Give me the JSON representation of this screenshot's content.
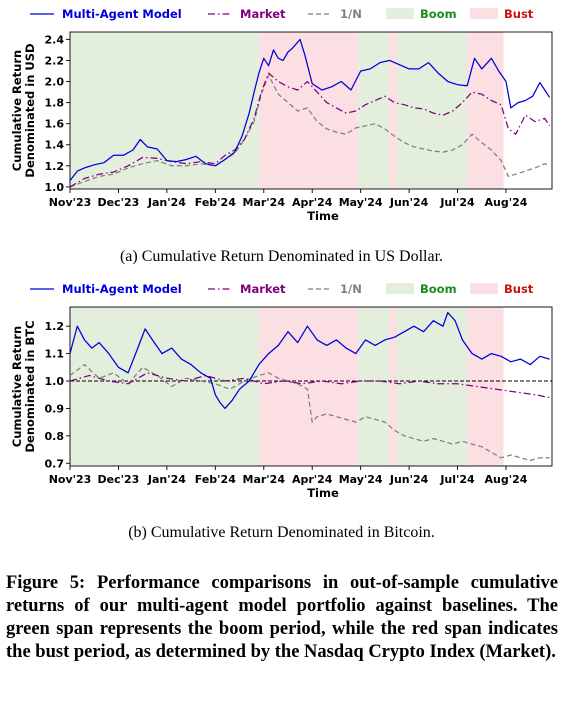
{
  "chart_data": [
    {
      "type": "line",
      "id": "usd",
      "xticks": [
        "Nov'23",
        "Dec'23",
        "Jan'24",
        "Feb'24",
        "Mar'24",
        "Apr'24",
        "May'24",
        "Jun'24",
        "Jul'24",
        "Aug'24"
      ],
      "xlabel": "Time",
      "ylabel": [
        "Cumulative Return",
        "Denominated in USD"
      ],
      "yticks": [
        "1.0",
        "1.2",
        "1.4",
        "1.6",
        "1.8",
        "2.0",
        "2.2",
        "2.4"
      ],
      "ylim": [
        0.98,
        2.47
      ],
      "xlim": [
        0,
        9.95
      ],
      "baseline": null,
      "spans": [
        {
          "kind": "boom",
          "start": 0.0,
          "end": 3.9
        },
        {
          "kind": "bust",
          "start": 3.9,
          "end": 5.95
        },
        {
          "kind": "boom",
          "start": 5.95,
          "end": 6.6
        },
        {
          "kind": "bust",
          "start": 6.6,
          "end": 6.75
        },
        {
          "kind": "boom",
          "start": 6.75,
          "end": 8.2
        },
        {
          "kind": "bust",
          "start": 8.2,
          "end": 8.95
        }
      ],
      "series": [
        {
          "name": "Multi-Agent Model",
          "color": "#0000dd",
          "dash": "",
          "x": [
            0,
            0.15,
            0.3,
            0.5,
            0.7,
            0.9,
            1.1,
            1.3,
            1.45,
            1.6,
            1.8,
            2.0,
            2.2,
            2.4,
            2.6,
            2.8,
            3.0,
            3.2,
            3.4,
            3.55,
            3.7,
            3.8,
            3.9,
            4.0,
            4.1,
            4.2,
            4.3,
            4.4,
            4.5,
            4.6,
            4.75,
            4.85,
            5.0,
            5.2,
            5.4,
            5.6,
            5.8,
            6.0,
            6.2,
            6.4,
            6.6,
            6.8,
            7.0,
            7.2,
            7.4,
            7.6,
            7.8,
            8.0,
            8.2,
            8.35,
            8.5,
            8.7,
            8.85,
            9.0,
            9.1,
            9.25,
            9.4,
            9.55,
            9.7,
            9.9
          ],
          "y": [
            1.06,
            1.15,
            1.18,
            1.21,
            1.23,
            1.3,
            1.3,
            1.35,
            1.45,
            1.38,
            1.36,
            1.25,
            1.24,
            1.26,
            1.29,
            1.22,
            1.2,
            1.26,
            1.33,
            1.48,
            1.7,
            1.9,
            2.08,
            2.22,
            2.15,
            2.3,
            2.22,
            2.2,
            2.28,
            2.32,
            2.4,
            2.25,
            1.98,
            1.92,
            1.95,
            2.0,
            1.92,
            2.1,
            2.12,
            2.18,
            2.2,
            2.16,
            2.12,
            2.12,
            2.18,
            2.08,
            2.0,
            1.97,
            1.96,
            2.22,
            2.12,
            2.22,
            2.1,
            2.0,
            1.75,
            1.8,
            1.82,
            1.86,
            1.99,
            1.85
          ]
        },
        {
          "name": "Market",
          "color": "#7f007f",
          "dash": "7,3,1.5,3",
          "x": [
            0,
            0.3,
            0.6,
            0.9,
            1.2,
            1.5,
            1.8,
            2.1,
            2.4,
            2.7,
            3.0,
            3.2,
            3.4,
            3.6,
            3.8,
            3.95,
            4.1,
            4.3,
            4.5,
            4.7,
            4.9,
            5.1,
            5.3,
            5.5,
            5.7,
            5.9,
            6.1,
            6.3,
            6.5,
            6.7,
            6.9,
            7.1,
            7.3,
            7.5,
            7.7,
            7.9,
            8.1,
            8.3,
            8.5,
            8.7,
            8.9,
            9.05,
            9.2,
            9.4,
            9.6,
            9.8,
            9.9
          ],
          "y": [
            1.0,
            1.08,
            1.12,
            1.14,
            1.2,
            1.28,
            1.27,
            1.24,
            1.22,
            1.24,
            1.22,
            1.3,
            1.35,
            1.45,
            1.65,
            1.9,
            2.08,
            2.0,
            1.95,
            1.92,
            2.0,
            1.9,
            1.8,
            1.75,
            1.7,
            1.72,
            1.78,
            1.82,
            1.86,
            1.8,
            1.78,
            1.75,
            1.74,
            1.7,
            1.68,
            1.72,
            1.8,
            1.9,
            1.88,
            1.82,
            1.78,
            1.55,
            1.5,
            1.68,
            1.62,
            1.65,
            1.58
          ]
        },
        {
          "name": "1/N",
          "color": "#808080",
          "dash": "5,3",
          "x": [
            0,
            0.3,
            0.6,
            0.9,
            1.2,
            1.5,
            1.8,
            2.1,
            2.4,
            2.7,
            3.0,
            3.2,
            3.4,
            3.6,
            3.8,
            3.95,
            4.1,
            4.3,
            4.5,
            4.7,
            4.9,
            5.1,
            5.3,
            5.5,
            5.7,
            5.9,
            6.1,
            6.3,
            6.5,
            6.7,
            6.9,
            7.1,
            7.3,
            7.5,
            7.7,
            7.9,
            8.1,
            8.3,
            8.5,
            8.7,
            8.9,
            9.05,
            9.2,
            9.4,
            9.6,
            9.8,
            9.9
          ],
          "y": [
            1.0,
            1.05,
            1.1,
            1.12,
            1.18,
            1.22,
            1.25,
            1.2,
            1.2,
            1.22,
            1.2,
            1.26,
            1.32,
            1.45,
            1.62,
            1.88,
            2.06,
            1.88,
            1.8,
            1.72,
            1.75,
            1.62,
            1.55,
            1.52,
            1.5,
            1.56,
            1.58,
            1.6,
            1.55,
            1.48,
            1.42,
            1.38,
            1.36,
            1.34,
            1.33,
            1.35,
            1.4,
            1.5,
            1.42,
            1.35,
            1.25,
            1.1,
            1.12,
            1.15,
            1.18,
            1.22,
            1.2
          ]
        }
      ]
    },
    {
      "type": "line",
      "id": "btc",
      "xticks": [
        "Nov'23",
        "Dec'23",
        "Jan'24",
        "Feb'24",
        "Mar'24",
        "Apr'24",
        "May'24",
        "Jun'24",
        "Jul'24",
        "Aug'24"
      ],
      "xlabel": "Time",
      "ylabel": [
        "Cumulative Return",
        "Denominated in BTC"
      ],
      "yticks": [
        "0.7",
        "0.8",
        "0.9",
        "1.0",
        "1.1",
        "1.2"
      ],
      "ylim": [
        0.69,
        1.27
      ],
      "xlim": [
        0,
        9.95
      ],
      "baseline": 1.0,
      "spans": [
        {
          "kind": "boom",
          "start": 0.0,
          "end": 3.9
        },
        {
          "kind": "bust",
          "start": 3.9,
          "end": 5.95
        },
        {
          "kind": "boom",
          "start": 5.95,
          "end": 6.6
        },
        {
          "kind": "bust",
          "start": 6.6,
          "end": 6.75
        },
        {
          "kind": "boom",
          "start": 6.75,
          "end": 8.2
        },
        {
          "kind": "bust",
          "start": 8.2,
          "end": 8.95
        }
      ],
      "series": [
        {
          "name": "Multi-Agent Model",
          "color": "#0000dd",
          "dash": "",
          "x": [
            0,
            0.15,
            0.3,
            0.45,
            0.6,
            0.8,
            1.0,
            1.2,
            1.4,
            1.55,
            1.7,
            1.9,
            2.1,
            2.3,
            2.5,
            2.7,
            2.9,
            3.0,
            3.1,
            3.2,
            3.35,
            3.5,
            3.7,
            3.9,
            4.1,
            4.3,
            4.5,
            4.7,
            4.9,
            5.1,
            5.3,
            5.5,
            5.7,
            5.9,
            6.1,
            6.3,
            6.5,
            6.7,
            6.9,
            7.1,
            7.3,
            7.5,
            7.7,
            7.8,
            7.95,
            8.1,
            8.3,
            8.5,
            8.7,
            8.9,
            9.1,
            9.3,
            9.5,
            9.7,
            9.9
          ],
          "y": [
            1.1,
            1.2,
            1.15,
            1.12,
            1.14,
            1.1,
            1.05,
            1.03,
            1.12,
            1.19,
            1.15,
            1.1,
            1.12,
            1.08,
            1.06,
            1.03,
            1.01,
            0.95,
            0.92,
            0.9,
            0.93,
            0.97,
            1.0,
            1.06,
            1.1,
            1.13,
            1.18,
            1.14,
            1.2,
            1.15,
            1.13,
            1.15,
            1.12,
            1.1,
            1.15,
            1.13,
            1.15,
            1.16,
            1.18,
            1.2,
            1.18,
            1.22,
            1.2,
            1.25,
            1.22,
            1.15,
            1.1,
            1.08,
            1.1,
            1.09,
            1.07,
            1.08,
            1.06,
            1.09,
            1.08
          ]
        },
        {
          "name": "Market",
          "color": "#7f007f",
          "dash": "7,3,1.5,3",
          "x": [
            0,
            0.4,
            0.8,
            1.2,
            1.6,
            2.0,
            2.4,
            2.8,
            3.2,
            3.6,
            4.0,
            4.4,
            4.8,
            5.2,
            5.6,
            6.0,
            6.4,
            6.8,
            7.2,
            7.6,
            8.0,
            8.4,
            8.8,
            9.2,
            9.6,
            9.9
          ],
          "y": [
            1.0,
            1.02,
            1.0,
            0.99,
            1.03,
            1.01,
            1.0,
            1.02,
            1.0,
            1.01,
            0.99,
            1.0,
            0.99,
            1.0,
            0.99,
            1.0,
            1.0,
            0.99,
            1.0,
            0.99,
            0.99,
            0.98,
            0.97,
            0.96,
            0.95,
            0.94
          ]
        },
        {
          "name": "1/N",
          "color": "#808080",
          "dash": "5,3",
          "x": [
            0,
            0.3,
            0.6,
            0.9,
            1.2,
            1.5,
            1.8,
            2.1,
            2.4,
            2.7,
            3.0,
            3.3,
            3.6,
            3.9,
            4.1,
            4.3,
            4.5,
            4.7,
            4.9,
            5.0,
            5.1,
            5.3,
            5.5,
            5.7,
            5.9,
            6.1,
            6.3,
            6.5,
            6.7,
            6.9,
            7.1,
            7.3,
            7.5,
            7.7,
            7.9,
            8.1,
            8.3,
            8.5,
            8.7,
            8.9,
            9.1,
            9.3,
            9.5,
            9.7,
            9.9
          ],
          "y": [
            1.02,
            1.06,
            1.01,
            1.03,
            0.99,
            1.05,
            1.02,
            0.98,
            1.01,
            1.0,
            0.99,
            0.97,
            1.0,
            1.02,
            1.03,
            1.01,
            1.0,
            0.99,
            0.97,
            0.85,
            0.87,
            0.88,
            0.87,
            0.86,
            0.85,
            0.87,
            0.86,
            0.85,
            0.82,
            0.8,
            0.79,
            0.78,
            0.79,
            0.78,
            0.77,
            0.78,
            0.77,
            0.76,
            0.74,
            0.72,
            0.73,
            0.72,
            0.71,
            0.72,
            0.72
          ]
        }
      ]
    }
  ],
  "legend": {
    "items": [
      {
        "label": "Multi-Agent Model",
        "color": "#0000dd",
        "dash": "",
        "kind": "line"
      },
      {
        "label": "Market",
        "color": "#7f007f",
        "dash": "7,3,1.5,3",
        "kind": "line"
      },
      {
        "label": "1/N",
        "color": "#808080",
        "dash": "5,3",
        "kind": "line"
      },
      {
        "label": "Boom",
        "color": "#1a8c1a",
        "kind": "patch",
        "fill": "#e3efdc"
      },
      {
        "label": "Bust",
        "color": "#cc1111",
        "kind": "patch",
        "fill": "#fbdfe2"
      }
    ],
    "position": "top"
  },
  "colors": {
    "boom_fill": "#e3efdc",
    "bust_fill": "#fbdfe2",
    "baseline": "#000000"
  },
  "captions": {
    "a": "(a) Cumulative Return Denominated in US Dollar.",
    "b": "(b) Cumulative Return Denominated in Bitcoin."
  },
  "figure_caption": "Figure 5: Performance comparisons in out-of-sample cumulative returns of our multi-agent model portfolio against baselines. The green span represents the boom period, while the red span indicates the bust period, as determined by the Nasdaq Crypto Index (Market)."
}
